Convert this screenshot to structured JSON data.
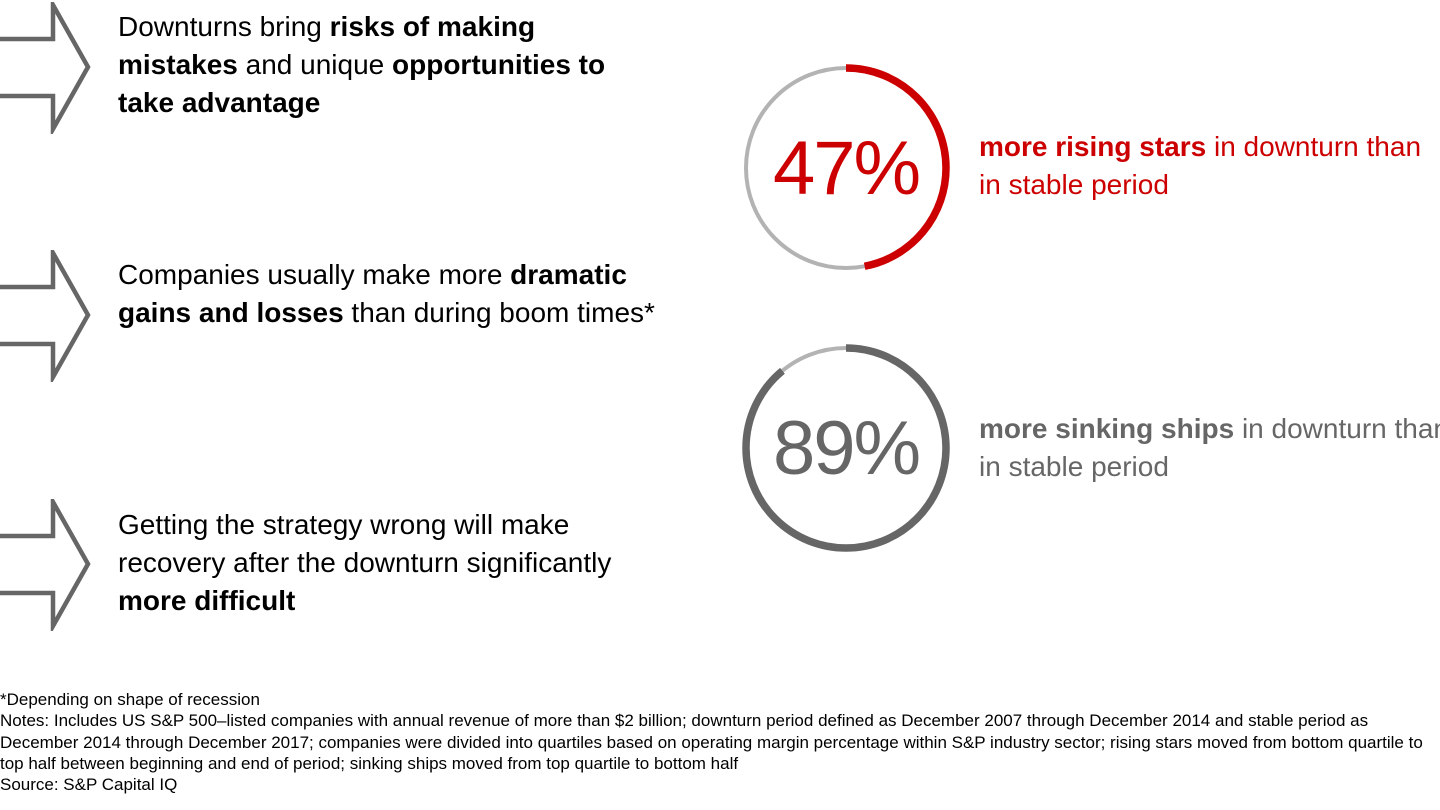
{
  "colors": {
    "accent": "#cc0000",
    "dark_gray": "#666666",
    "light_gray": "#b3b3b3"
  },
  "points": [
    {
      "icon": "arrow-right-outline-icon",
      "parts": [
        {
          "t": "Downturns bring ",
          "b": false
        },
        {
          "t": "risks of making mistakes",
          "b": true
        },
        {
          "t": " and unique ",
          "b": false
        },
        {
          "t": "opportunities to take advantage",
          "b": true
        }
      ]
    },
    {
      "icon": "arrow-right-outline-icon",
      "parts": [
        {
          "t": "Companies usually make more ",
          "b": false
        },
        {
          "t": "dramatic gains and losses",
          "b": true
        },
        {
          "t": " than during boom times*",
          "b": false
        }
      ]
    },
    {
      "icon": "arrow-right-outline-icon",
      "parts": [
        {
          "t": "Getting the strategy wrong will make recovery after the downturn significantly ",
          "b": false
        },
        {
          "t": "more difficult",
          "b": true
        }
      ]
    }
  ],
  "stats": [
    {
      "value": "47%",
      "percent": 47,
      "color": "#cc0000",
      "bold": "more rising stars",
      "rest": " in downturn than in stable period"
    },
    {
      "value": "89%",
      "percent": 89,
      "color": "#666666",
      "bold": "more sinking ships",
      "rest": " in downturn than in stable period"
    }
  ],
  "footnote": "*Depending on shape of recession",
  "notes": "Notes: Includes US S&P 500–listed companies with annual revenue of more than $2 billion; downturn period defined as December 2007 through December 2014 and stable period as December 2014 through December 2017; companies were divided into quartiles based on operating margin percentage within S&P industry sector; rising stars moved from bottom quartile to top half between beginning and end of period; sinking ships moved from top quartile to bottom half",
  "source": "Source: S&P Capital IQ"
}
